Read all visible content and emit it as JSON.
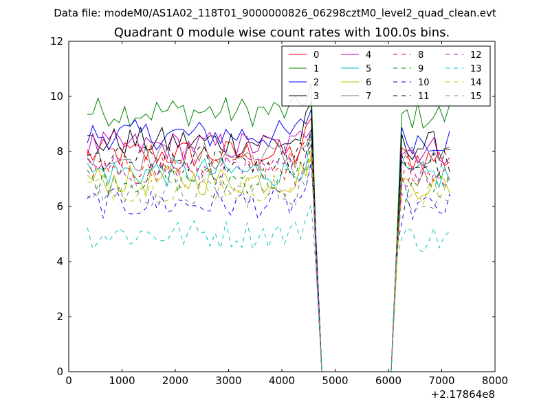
{
  "supertitle": "Data file: modeM0/AS1A02_118T01_9000000826_06298cztM0_level2_quad_clean.evt",
  "chart_data": {
    "type": "line",
    "title": "Quadrant 0 module wise count rates with 100.0s bins.",
    "xlabel": "",
    "ylabel": "",
    "xlim": [
      0,
      8000
    ],
    "ylim": [
      0,
      12
    ],
    "x_offset_label": "+2.17864e8",
    "xticks": [
      "0",
      "1000",
      "2000",
      "3000",
      "4000",
      "5000",
      "6000",
      "7000",
      "8000"
    ],
    "yticks": [
      "0",
      "2",
      "4",
      "6",
      "8",
      "10",
      "12"
    ],
    "legend_placement": "top-right",
    "legend_columns": 4,
    "grid": false,
    "gap_segment": {
      "x": [
        4600,
        4700,
        4800,
        5000,
        5200,
        5400,
        5600,
        5800,
        6000,
        6050,
        6150
      ],
      "note": ""
    },
    "x_on": [
      350,
      450,
      550,
      650,
      750,
      850,
      950,
      1050,
      1150,
      1250,
      1350,
      1450,
      1550,
      1650,
      1750,
      1850,
      1950,
      2050,
      2150,
      2250,
      2350,
      2450,
      2550,
      2650,
      2750,
      2850,
      2950,
      3050,
      3150,
      3250,
      3350,
      3450,
      3550,
      3650,
      3750,
      3850,
      3950,
      4050,
      4150,
      4250,
      4350,
      4450,
      4550
    ],
    "x_after": [
      6250,
      6350,
      6450,
      6550,
      6650,
      6750,
      6850,
      6950,
      7050,
      7150
    ],
    "series": [
      {
        "name": "0",
        "color": "#ff0000",
        "dash": "solid",
        "mean": 7.9
      },
      {
        "name": "1",
        "color": "#008000",
        "dash": "solid",
        "mean": 9.45
      },
      {
        "name": "2",
        "color": "#0000ff",
        "dash": "solid",
        "mean": 8.6
      },
      {
        "name": "3",
        "color": "#000000",
        "dash": "solid",
        "mean": 8.35
      },
      {
        "name": "4",
        "color": "#bf00bf",
        "dash": "solid",
        "mean": 8.2
      },
      {
        "name": "5",
        "color": "#00bfbf",
        "dash": "solid",
        "mean": 7.25
      },
      {
        "name": "6",
        "color": "#bfbf00",
        "dash": "solid",
        "mean": 6.95
      },
      {
        "name": "7",
        "color": "#808080",
        "dash": "solid",
        "mean": 7.8
      },
      {
        "name": "8",
        "color": "#ff0000",
        "dash": "dashed",
        "mean": 7.5
      },
      {
        "name": "9",
        "color": "#008000",
        "dash": "dashed",
        "mean": 7.0
      },
      {
        "name": "10",
        "color": "#0000ff",
        "dash": "dashed",
        "mean": 6.1
      },
      {
        "name": "11",
        "color": "#000000",
        "dash": "dashed",
        "mean": 7.7
      },
      {
        "name": "12",
        "color": "#bf00bf",
        "dash": "dashed",
        "mean": 7.3
      },
      {
        "name": "13",
        "color": "#00bfbf",
        "dash": "dashed",
        "mean": 5.0
      },
      {
        "name": "14",
        "color": "#bfbf00",
        "dash": "dashed",
        "mean": 6.7
      },
      {
        "name": "15",
        "color": "#808080",
        "dash": "dashed",
        "mean": 6.5
      }
    ]
  }
}
